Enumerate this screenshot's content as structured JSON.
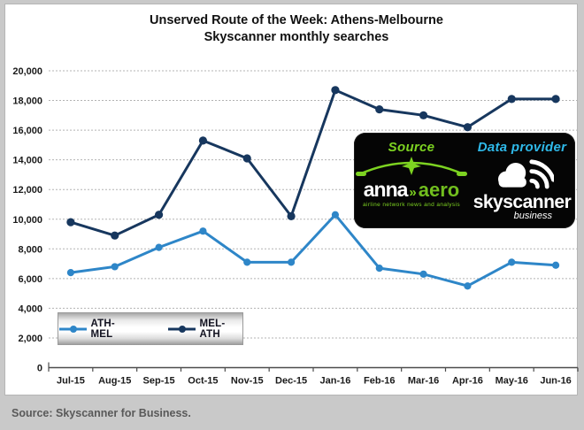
{
  "title": {
    "line1": "Unserved Route of the Week: Athens-Melbourne",
    "line2": "Skyscanner monthly searches"
  },
  "legend": {
    "items": [
      {
        "label": "ATH-MEL"
      },
      {
        "label": "MEL-ATH"
      }
    ]
  },
  "overlay": {
    "source_label": "Source",
    "data_provider_label": "Data provider",
    "anna_logo": {
      "word1": "anna",
      "separator": "»",
      "word2": "aero",
      "tagline": "airline network news and analysis"
    },
    "skyscanner_logo": {
      "word": "skyscanner",
      "sub": "business"
    }
  },
  "footer": {
    "text": "Source: Skyscanner for Business."
  },
  "colors": {
    "ath_mel_blue": "#2E86C8",
    "mel_ath_navy": "#17375E",
    "source_green": "#7DD321",
    "provider_cyan": "#2FB9E9",
    "frame_gray": "#C9C9C9",
    "footer_text_gray": "#595959",
    "gridline_gray": "#B3B3B3"
  },
  "chart_data": {
    "type": "line",
    "title": "Unserved Route of the Week: Athens-Melbourne Skyscanner monthly searches",
    "categories": [
      "Jul-15",
      "Aug-15",
      "Sep-15",
      "Oct-15",
      "Nov-15",
      "Dec-15",
      "Jan-16",
      "Feb-16",
      "Mar-16",
      "Apr-16",
      "May-16",
      "Jun-16"
    ],
    "series": [
      {
        "name": "ATH-MEL",
        "color": "#2E86C8",
        "values": [
          6400,
          6800,
          8100,
          9200,
          7100,
          7100,
          10300,
          6700,
          6300,
          5500,
          7100,
          6900
        ]
      },
      {
        "name": "MEL-ATH",
        "color": "#17375E",
        "values": [
          9800,
          8900,
          10300,
          15300,
          14100,
          10200,
          18700,
          17400,
          17000,
          16200,
          18100,
          18100
        ]
      }
    ],
    "xlabel": "",
    "ylabel": "",
    "ylim": [
      0,
      20000
    ],
    "ytick_step": 2000,
    "grid": "horizontal-dashed",
    "legend_position": "inside-bottom-left"
  }
}
